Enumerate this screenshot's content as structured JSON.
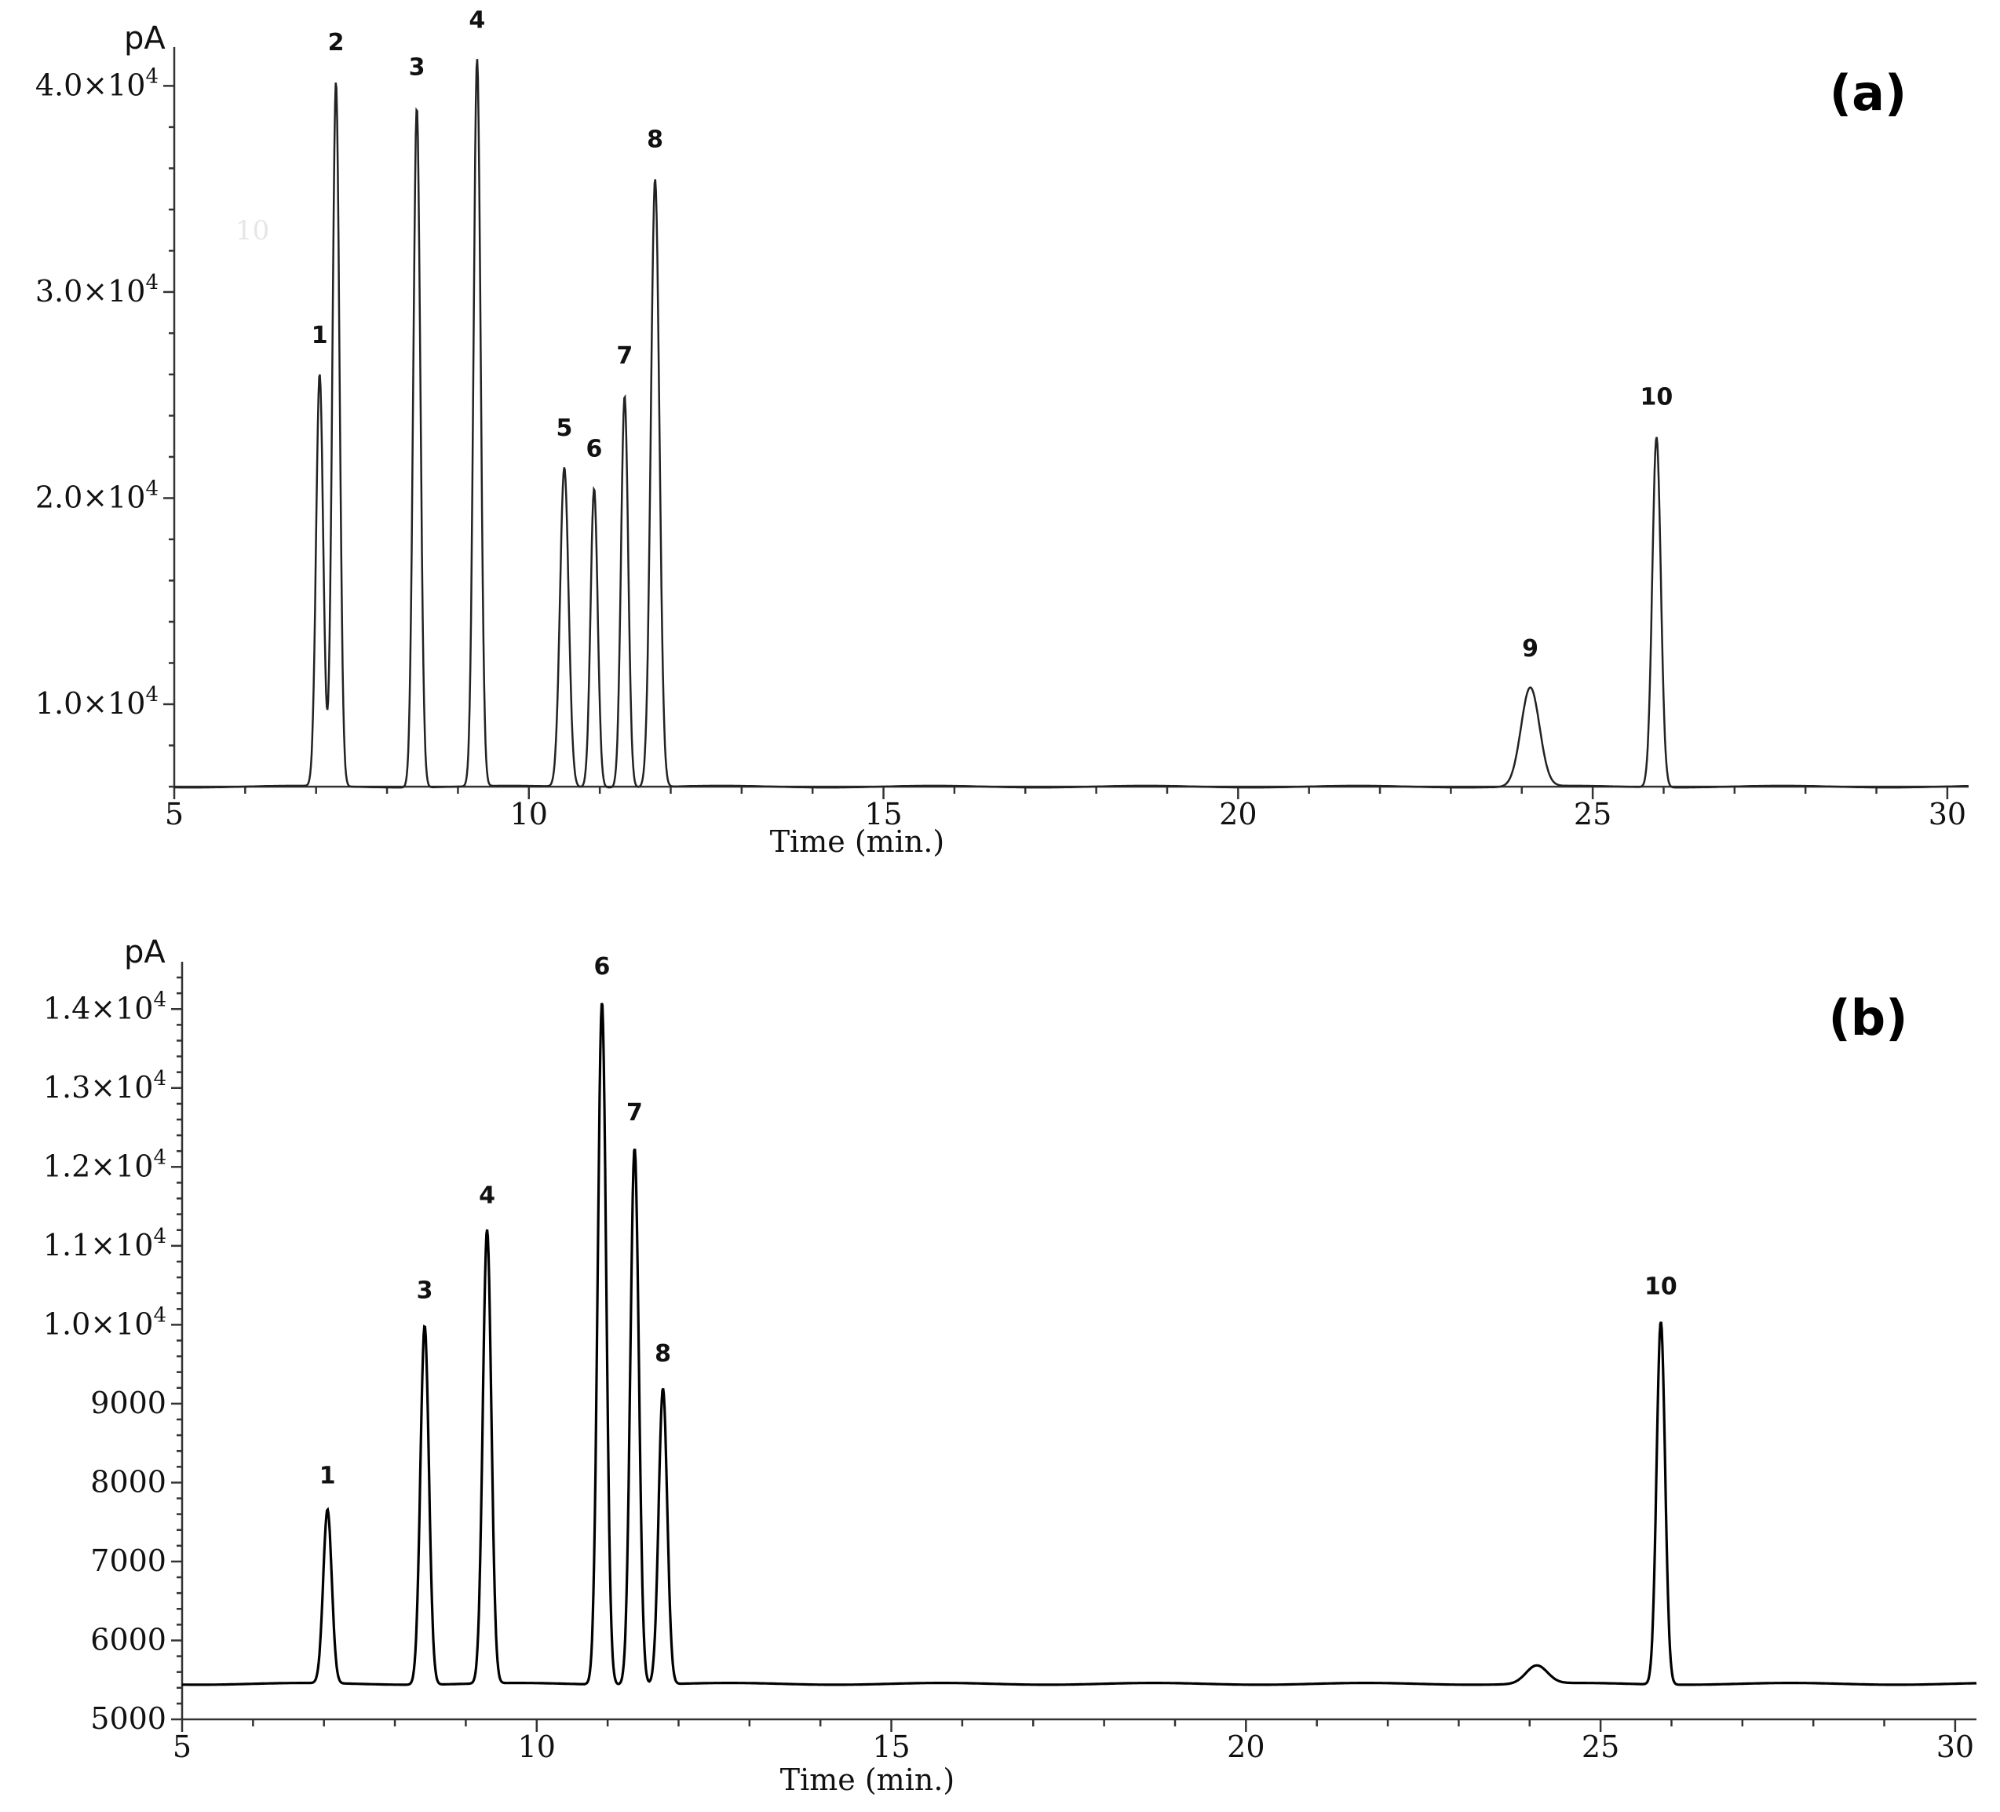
{
  "chart_data": [
    {
      "type": "line",
      "panel_label": "(a)",
      "unit_label": "pA",
      "xlabel": "Time (min.)",
      "xlim": [
        5,
        30.3
      ],
      "ylim": [
        6000,
        41500
      ],
      "x_ticks": [
        5,
        10,
        15,
        20,
        25,
        30
      ],
      "y_ticks": [
        {
          "value": 10000,
          "mantissa": "1.0×10",
          "exp": "4"
        },
        {
          "value": 20000,
          "mantissa": "2.0×10",
          "exp": "4"
        },
        {
          "value": 30000,
          "mantissa": "3.0×10",
          "exp": "4"
        },
        {
          "value": 40000,
          "mantissa": "4.0×10",
          "exp": "4"
        }
      ],
      "baseline": 6000,
      "series": [
        {
          "peaks": [
            {
              "label": "1",
              "x": 7.05,
              "y": 26000,
              "w": 0.05
            },
            {
              "label": "2",
              "x": 7.28,
              "y": 40200,
              "w": 0.05
            },
            {
              "label": "3",
              "x": 8.42,
              "y": 39000,
              "w": 0.05
            },
            {
              "label": "4",
              "x": 9.27,
              "y": 41300,
              "w": 0.05
            },
            {
              "label": "5",
              "x": 10.5,
              "y": 21500,
              "w": 0.06
            },
            {
              "label": "6",
              "x": 10.92,
              "y": 20500,
              "w": 0.05
            },
            {
              "label": "7",
              "x": 11.35,
              "y": 25000,
              "w": 0.05
            },
            {
              "label": "8",
              "x": 11.78,
              "y": 35500,
              "w": 0.06
            },
            {
              "label": "9",
              "x": 24.12,
              "y": 10800,
              "w": 0.13
            },
            {
              "label": "10",
              "x": 25.9,
              "y": 23000,
              "w": 0.06
            }
          ]
        }
      ],
      "ghost_text": "10"
    },
    {
      "type": "line",
      "panel_label": "(b)",
      "unit_label": "pA",
      "xlabel": "Time (min.)",
      "xlim": [
        5,
        30.3
      ],
      "ylim": [
        5000,
        14500
      ],
      "x_ticks": [
        5,
        10,
        15,
        20,
        25,
        30
      ],
      "y_ticks": [
        {
          "value": 5000,
          "mantissa": "5000",
          "exp": ""
        },
        {
          "value": 6000,
          "mantissa": "6000",
          "exp": ""
        },
        {
          "value": 7000,
          "mantissa": "7000",
          "exp": ""
        },
        {
          "value": 8000,
          "mantissa": "8000",
          "exp": ""
        },
        {
          "value": 9000,
          "mantissa": "9000",
          "exp": ""
        },
        {
          "value": 10000,
          "mantissa": "1.0×10",
          "exp": "4"
        },
        {
          "value": 11000,
          "mantissa": "1.1×10",
          "exp": "4"
        },
        {
          "value": 12000,
          "mantissa": "1.2×10",
          "exp": "4"
        },
        {
          "value": 13000,
          "mantissa": "1.3×10",
          "exp": "4"
        },
        {
          "value": 14000,
          "mantissa": "1.4×10",
          "exp": "4"
        }
      ],
      "baseline": 5450,
      "series": [
        {
          "peaks": [
            {
              "label": "1",
              "x": 7.05,
              "y": 7650,
              "w": 0.06
            },
            {
              "label": "3",
              "x": 8.42,
              "y": 10000,
              "w": 0.06
            },
            {
              "label": "4",
              "x": 9.3,
              "y": 11200,
              "w": 0.06
            },
            {
              "label": "6",
              "x": 10.92,
              "y": 14100,
              "w": 0.06
            },
            {
              "label": "7",
              "x": 11.38,
              "y": 12250,
              "w": 0.06
            },
            {
              "label": "8",
              "x": 11.78,
              "y": 9200,
              "w": 0.06
            },
            {
              "label": "",
              "x": 24.1,
              "y": 5680,
              "w": 0.15
            },
            {
              "label": "10",
              "x": 25.85,
              "y": 10050,
              "w": 0.06
            }
          ]
        }
      ]
    }
  ]
}
